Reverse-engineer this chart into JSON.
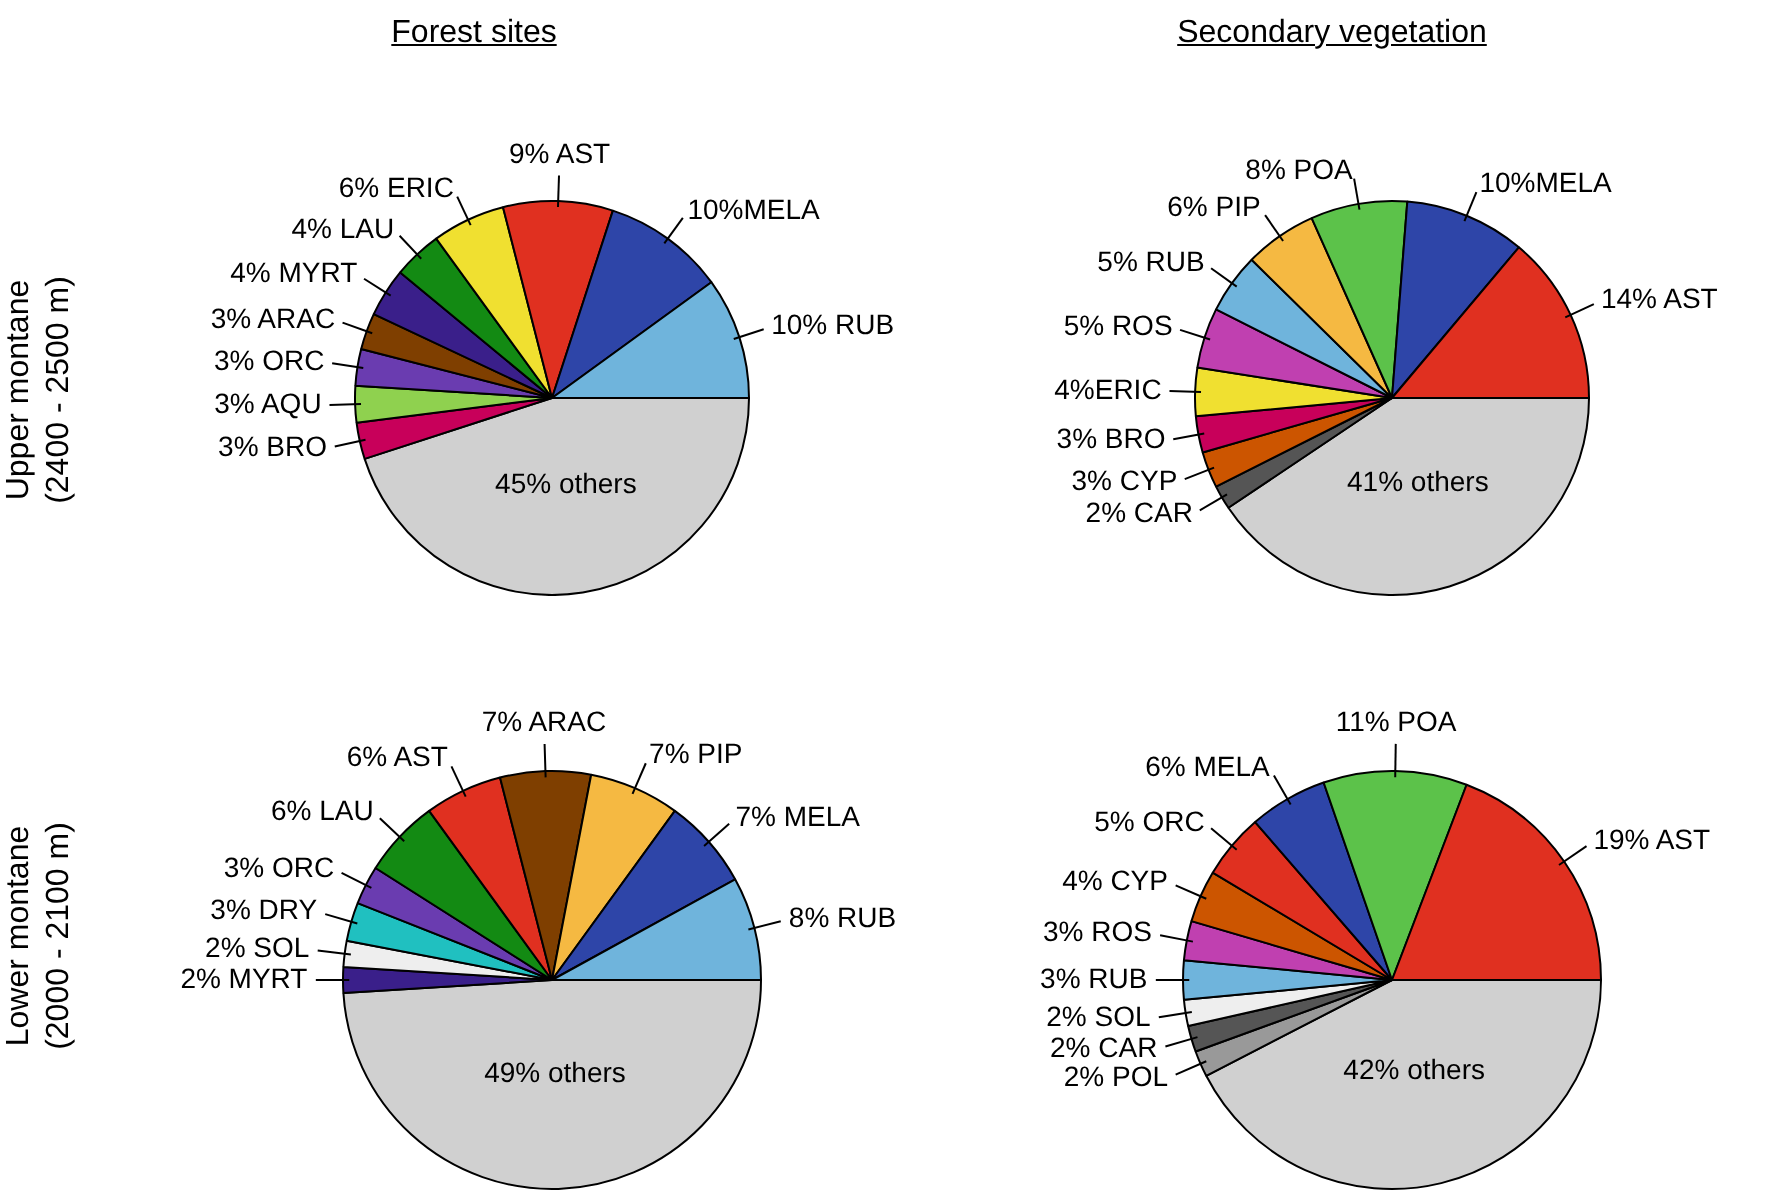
{
  "chart_data": [
    {
      "type": "pie",
      "title": "Forest sites",
      "ylabel": "Upper montane\n(2400 - 2500 m)",
      "categories": [
        "45% others",
        "3% BRO",
        "3% AQU",
        "3% ORC",
        "3% ARAC",
        "4% MYRT",
        "4% LAU",
        "6% ERIC",
        "9% AST",
        "10%MELA",
        "10% RUB"
      ],
      "values": [
        45,
        3,
        3,
        3,
        3,
        4,
        4,
        6,
        9,
        10,
        10
      ],
      "colors": [
        "#d0d0d0",
        "#c8005a",
        "#8fd14f",
        "#6a3cb0",
        "#7f3f00",
        "#3a1f8a",
        "#138a13",
        "#f0e030",
        "#e03020",
        "#2e45a8",
        "#6fb4dc"
      ],
      "legend": false
    },
    {
      "type": "pie",
      "title": "Secondary vegetation",
      "categories": [
        "41% others",
        "2% CAR",
        "3% CYP",
        "3% BRO",
        "4%ERIC",
        "5% ROS",
        "5% RUB",
        "6% PIP",
        "8% POA",
        "10%MELA",
        "14% AST"
      ],
      "values": [
        41,
        2,
        3,
        3,
        4,
        5,
        5,
        6,
        8,
        10,
        14
      ],
      "colors": [
        "#d0d0d0",
        "#555555",
        "#cc5500",
        "#c8005a",
        "#f0e030",
        "#c040b0",
        "#6fb4dc",
        "#f5b942",
        "#5cc24a",
        "#2e45a8",
        "#e03020"
      ],
      "legend": false
    },
    {
      "type": "pie",
      "ylabel": "Lower montane\n(2000 - 2100 m)",
      "categories": [
        "49% others",
        "2% MYRT",
        "2% SOL",
        "3% DRY",
        "3% ORC",
        "6% LAU",
        "6% AST",
        "7% ARAC",
        "7% PIP",
        "7% MELA",
        "8% RUB"
      ],
      "values": [
        49,
        2,
        2,
        3,
        3,
        6,
        6,
        7,
        7,
        7,
        8
      ],
      "colors": [
        "#d0d0d0",
        "#3a1f8a",
        "#eeeeee",
        "#20c0c0",
        "#6a3cb0",
        "#138a13",
        "#e03020",
        "#7f3f00",
        "#f5b942",
        "#2e45a8",
        "#6fb4dc"
      ],
      "legend": false
    },
    {
      "type": "pie",
      "categories": [
        "42% others",
        "2% POL",
        "2% CAR",
        "2% SOL",
        "3% RUB",
        "3% ROS",
        "4% CYP",
        "5% ORC",
        "6% MELA",
        "11% POA",
        "19% AST"
      ],
      "values": [
        42,
        2,
        2,
        2,
        3,
        3,
        4,
        5,
        6,
        11,
        19
      ],
      "colors": [
        "#d0d0d0",
        "#999999",
        "#555555",
        "#eeeeee",
        "#6fb4dc",
        "#c040b0",
        "#cc5500",
        "#e03020",
        "#2e45a8",
        "#5cc24a",
        "#e03020"
      ],
      "legend": false
    }
  ]
}
